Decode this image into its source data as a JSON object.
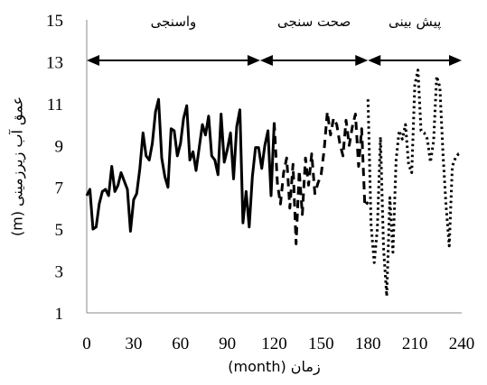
{
  "chart_data": {
    "type": "line",
    "xlabel": "زمان (month)",
    "ylabel": "عمق آب زیرزمینی (m)",
    "xlim": [
      0,
      240
    ],
    "ylim": [
      1,
      15
    ],
    "x_ticks": [
      "0",
      "30",
      "60",
      "90",
      "120",
      "150",
      "180",
      "210",
      "240"
    ],
    "y_ticks": [
      "1",
      "3",
      "5",
      "7",
      "9",
      "11",
      "13",
      "15"
    ],
    "grid": false,
    "periods": [
      {
        "label": "واسنجی",
        "x_range": [
          0,
          111
        ]
      },
      {
        "label": "صحت سنجی",
        "x_range": [
          111,
          180
        ]
      },
      {
        "label": "پیش بینی",
        "x_range": [
          180,
          240
        ]
      }
    ],
    "series": [
      {
        "style": "solid",
        "x": [
          0,
          2,
          4,
          6,
          8,
          10,
          12,
          14,
          16,
          18,
          20,
          22,
          24,
          26,
          28,
          30,
          32,
          34,
          36,
          38,
          40,
          42,
          44,
          46,
          48,
          50,
          52,
          54,
          56,
          58,
          60,
          62,
          64,
          66,
          68,
          70,
          72,
          74,
          76,
          78,
          80,
          82,
          84,
          86,
          88,
          90,
          92,
          94,
          96,
          98,
          100,
          102,
          104,
          106,
          108,
          110,
          112,
          114,
          116,
          118,
          120
        ],
        "y": [
          6.6,
          6.9,
          5.0,
          5.1,
          6.2,
          6.8,
          6.9,
          6.6,
          8.0,
          6.8,
          7.1,
          7.7,
          7.3,
          6.9,
          4.9,
          6.4,
          6.7,
          7.9,
          9.6,
          8.5,
          8.3,
          9.1,
          10.6,
          11.2,
          8.4,
          7.5,
          7.0,
          9.8,
          9.7,
          8.5,
          9.1,
          10.3,
          10.9,
          8.3,
          8.7,
          7.8,
          8.9,
          10.0,
          9.5,
          10.4,
          8.5,
          8.3,
          7.6,
          10.5,
          8.2,
          8.8,
          9.6,
          7.4,
          9.9,
          10.7,
          5.3,
          6.8,
          5.1,
          7.5,
          8.9,
          8.9,
          7.9,
          9.0,
          9.7,
          6.6,
          10.1
        ]
      },
      {
        "style": "dashed",
        "x": [
          120,
          122,
          124,
          126,
          128,
          130,
          132,
          134,
          136,
          138,
          140,
          142,
          144,
          146,
          148,
          150,
          152,
          154,
          156,
          158,
          160,
          162,
          164,
          166,
          168,
          170,
          172,
          174,
          176,
          178,
          180
        ],
        "y": [
          10.1,
          7.2,
          6.2,
          7.7,
          8.4,
          6.0,
          8.1,
          4.3,
          7.8,
          5.7,
          8.4,
          7.1,
          8.6,
          6.7,
          7.2,
          7.6,
          8.8,
          10.6,
          9.5,
          10.3,
          10.0,
          9.1,
          8.5,
          10.2,
          9.0,
          9.9,
          10.5,
          8.0,
          9.8,
          6.1,
          6.3
        ]
      },
      {
        "style": "dotted",
        "x": [
          180,
          182,
          184,
          186,
          188,
          190,
          192,
          194,
          196,
          198,
          200,
          202,
          204,
          206,
          208,
          210,
          212,
          214,
          216,
          218,
          220,
          222,
          224,
          226,
          228,
          230,
          232,
          234,
          236,
          238,
          240
        ],
        "y": [
          11.2,
          5.2,
          3.4,
          5.0,
          9.4,
          4.1,
          1.8,
          6.5,
          3.9,
          8.3,
          9.7,
          9.3,
          10.0,
          8.1,
          7.7,
          11.9,
          12.6,
          9.7,
          9.6,
          9.3,
          8.2,
          9.2,
          12.3,
          11.8,
          8.6,
          6.1,
          4.2,
          8.0,
          8.4,
          8.6,
          8.6
        ]
      }
    ]
  }
}
